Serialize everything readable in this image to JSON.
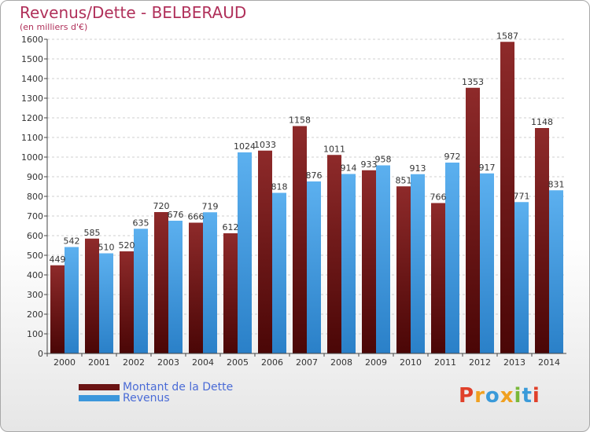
{
  "chart_data": {
    "type": "bar",
    "title": "Revenus/Dette - BELBERAUD",
    "subtitle": "(en milliers d'€)",
    "categories": [
      "2000",
      "2001",
      "2002",
      "2003",
      "2004",
      "2005",
      "2006",
      "2007",
      "2008",
      "2009",
      "2010",
      "2011",
      "2012",
      "2013",
      "2014"
    ],
    "series": [
      {
        "name": "Montant de la Dette",
        "color": "#7a1c1c",
        "values": [
          449,
          585,
          520,
          720,
          666,
          612,
          1033,
          1158,
          1011,
          933,
          851,
          766,
          1353,
          1587,
          1148
        ]
      },
      {
        "name": "Revenus",
        "color": "#3c97dc",
        "values": [
          542,
          510,
          635,
          676,
          719,
          1024,
          818,
          876,
          914,
          958,
          913,
          972,
          917,
          771,
          831
        ]
      }
    ],
    "ylim": [
      0,
      1600
    ],
    "yticks": [
      0,
      100,
      200,
      300,
      400,
      500,
      600,
      700,
      800,
      900,
      1000,
      1100,
      1200,
      1300,
      1400,
      1500,
      1600
    ],
    "grid": true,
    "legend_position": "bottom-left"
  },
  "legend": {
    "debt_label": "Montant de la Dette",
    "revenue_label": "Revenus",
    "debt_color": "#6b1414",
    "revenue_color": "#3c97dc"
  },
  "logo": {
    "letters": [
      "P",
      "r",
      "o",
      "x",
      "i",
      "t",
      "i"
    ],
    "colors": [
      "#e0402a",
      "#f0a020",
      "#3a9ad9",
      "#f0a020",
      "#7ab83a",
      "#3a9ad9",
      "#e0402a"
    ]
  }
}
